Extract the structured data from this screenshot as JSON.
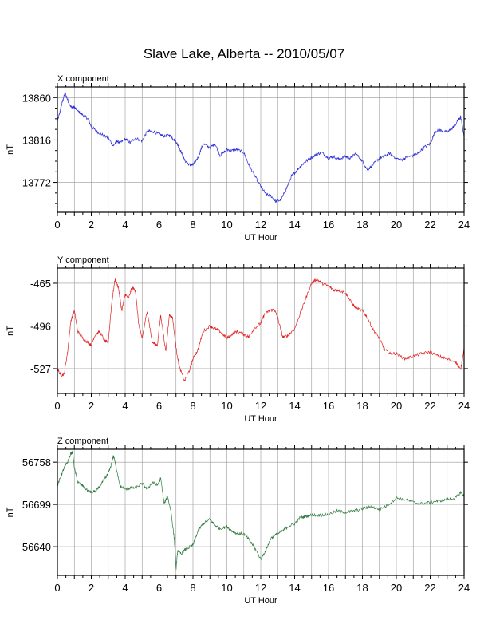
{
  "title": "Slave Lake, Alberta -- 2010/05/07",
  "colors": {
    "x": "#2b2bd6",
    "y": "#e02020",
    "z": "#2e7a3e",
    "grid": "#888888"
  },
  "chart_data": [
    {
      "type": "line",
      "component_label": "X component",
      "xlabel": "UT Hour",
      "ylabel": "nT",
      "xlim": [
        0,
        24
      ],
      "ylim": [
        13741,
        13871
      ],
      "xticks": [
        "0",
        "2",
        "4",
        "6",
        "8",
        "10",
        "12",
        "14",
        "16",
        "18",
        "20",
        "22",
        "24"
      ],
      "yticks": [
        13860,
        13816,
        13772
      ],
      "grid": true,
      "color": "#2b2bd6",
      "series": [
        {
          "x": [
            0,
            0.15,
            0.3,
            0.45,
            0.6,
            0.8,
            1.0,
            1.2,
            1.5,
            1.8,
            2.0,
            2.3,
            2.6,
            3.0,
            3.3,
            3.5,
            3.7,
            4.0,
            4.3,
            4.6,
            5.0,
            5.3,
            5.6,
            6.0,
            6.3,
            6.6,
            6.8,
            7.0,
            7.2,
            7.5,
            7.8,
            8.0,
            8.3,
            8.6,
            9.0,
            9.3,
            9.6,
            10.0,
            10.3,
            10.6,
            11.0,
            11.3,
            11.6,
            12.0,
            12.3,
            12.6,
            12.9,
            13.2,
            13.5,
            13.8,
            14.0,
            14.3,
            14.6,
            15.0,
            15.3,
            15.6,
            16.0,
            16.3,
            16.6,
            17.0,
            17.3,
            17.6,
            18.0,
            18.3,
            18.6,
            19.0,
            19.3,
            19.6,
            20.0,
            20.3,
            20.6,
            21.0,
            21.3,
            21.6,
            22.0,
            22.3,
            22.6,
            23.0,
            23.3,
            23.6,
            23.8,
            24.0
          ],
          "y": [
            13835,
            13845,
            13856,
            13865,
            13858,
            13850,
            13850,
            13846,
            13842,
            13838,
            13830,
            13825,
            13822,
            13818,
            13810,
            13815,
            13813,
            13817,
            13813,
            13818,
            13815,
            13825,
            13825,
            13822,
            13820,
            13821,
            13818,
            13814,
            13808,
            13795,
            13790,
            13790,
            13798,
            13812,
            13808,
            13812,
            13800,
            13806,
            13805,
            13806,
            13803,
            13790,
            13780,
            13768,
            13760,
            13758,
            13752,
            13754,
            13765,
            13778,
            13782,
            13788,
            13793,
            13798,
            13801,
            13803,
            13797,
            13799,
            13796,
            13799,
            13797,
            13802,
            13794,
            13785,
            13790,
            13797,
            13799,
            13802,
            13797,
            13795,
            13798,
            13800,
            13802,
            13808,
            13812,
            13825,
            13826,
            13824,
            13828,
            13835,
            13840,
            13820
          ]
        }
      ]
    },
    {
      "type": "line",
      "component_label": "Y component",
      "xlabel": "UT Hour",
      "ylabel": "nT",
      "xlim": [
        0,
        24
      ],
      "ylim": [
        -545,
        -454
      ],
      "xticks": [
        "0",
        "2",
        "4",
        "6",
        "8",
        "10",
        "12",
        "14",
        "16",
        "18",
        "20",
        "22",
        "24"
      ],
      "yticks": [
        -465,
        -496,
        -527
      ],
      "grid": true,
      "color": "#e02020",
      "series": [
        {
          "x": [
            0,
            0.2,
            0.4,
            0.6,
            0.8,
            1.0,
            1.2,
            1.5,
            1.8,
            2.0,
            2.2,
            2.5,
            2.8,
            3.0,
            3.2,
            3.4,
            3.6,
            3.8,
            4.0,
            4.2,
            4.4,
            4.6,
            4.8,
            5.0,
            5.3,
            5.6,
            5.9,
            6.1,
            6.4,
            6.6,
            6.8,
            7.0,
            7.2,
            7.5,
            7.8,
            8.0,
            8.3,
            8.6,
            9.0,
            9.3,
            9.6,
            10.0,
            10.3,
            10.6,
            11.0,
            11.3,
            11.6,
            12.0,
            12.2,
            12.5,
            12.8,
            13.0,
            13.3,
            13.6,
            14.0,
            14.3,
            14.6,
            15.0,
            15.3,
            15.6,
            16.0,
            16.3,
            16.6,
            17.0,
            17.3,
            17.6,
            18.0,
            18.3,
            18.6,
            19.0,
            19.3,
            19.6,
            20.0,
            20.5,
            21.0,
            21.5,
            22.0,
            22.5,
            23.0,
            23.5,
            23.8,
            24.0
          ],
          "y": [
            -527,
            -532,
            -531,
            -515,
            -492,
            -485,
            -500,
            -505,
            -508,
            -510,
            -503,
            -500,
            -507,
            -508,
            -480,
            -462,
            -468,
            -485,
            -473,
            -476,
            -468,
            -470,
            -495,
            -505,
            -485,
            -508,
            -510,
            -488,
            -515,
            -488,
            -490,
            -512,
            -526,
            -536,
            -528,
            -520,
            -513,
            -500,
            -496,
            -498,
            -500,
            -505,
            -502,
            -500,
            -502,
            -504,
            -498,
            -494,
            -488,
            -485,
            -484,
            -490,
            -504,
            -503,
            -498,
            -488,
            -478,
            -465,
            -462,
            -465,
            -467,
            -470,
            -470,
            -472,
            -478,
            -483,
            -485,
            -490,
            -498,
            -505,
            -513,
            -516,
            -516,
            -520,
            -518,
            -516,
            -515,
            -518,
            -520,
            -522,
            -528,
            -512
          ]
        }
      ]
    },
    {
      "type": "line",
      "component_label": "Z component",
      "xlabel": "UT Hour",
      "ylabel": "nT",
      "xlim": [
        0,
        24
      ],
      "ylim": [
        56600,
        56776
      ],
      "xticks": [
        "0",
        "2",
        "4",
        "6",
        "8",
        "10",
        "12",
        "14",
        "16",
        "18",
        "20",
        "22",
        "24"
      ],
      "yticks": [
        56758,
        56699,
        56640
      ],
      "grid": true,
      "color": "#2e7a3e",
      "series": [
        {
          "x": [
            0,
            0.2,
            0.4,
            0.6,
            0.8,
            0.9,
            1.0,
            1.2,
            1.5,
            1.8,
            2.0,
            2.3,
            2.6,
            2.9,
            3.1,
            3.3,
            3.4,
            3.5,
            3.7,
            4.0,
            4.3,
            4.6,
            5.0,
            5.3,
            5.6,
            5.9,
            6.1,
            6.3,
            6.5,
            6.7,
            6.9,
            7.0,
            7.1,
            7.3,
            7.6,
            8.0,
            8.3,
            8.6,
            9.0,
            9.3,
            9.6,
            10.0,
            10.3,
            10.6,
            11.0,
            11.3,
            11.6,
            12.0,
            12.3,
            12.6,
            13.0,
            13.3,
            13.6,
            14.0,
            14.3,
            14.6,
            15.0,
            15.5,
            16.0,
            16.5,
            17.0,
            17.5,
            18.0,
            18.5,
            19.0,
            19.5,
            20.0,
            20.5,
            21.0,
            21.5,
            22.0,
            22.5,
            23.0,
            23.5,
            23.8,
            24.0
          ],
          "y": [
            56725,
            56738,
            56750,
            56758,
            56770,
            56772,
            56750,
            56730,
            56725,
            56718,
            56716,
            56718,
            56728,
            56738,
            56748,
            56766,
            56760,
            56745,
            56725,
            56720,
            56722,
            56722,
            56728,
            56720,
            56730,
            56726,
            56735,
            56700,
            56710,
            56690,
            56650,
            56608,
            56635,
            56630,
            56637,
            56642,
            56662,
            56672,
            56678,
            56670,
            56665,
            56668,
            56662,
            56658,
            56658,
            56650,
            56640,
            56623,
            56635,
            56652,
            56658,
            56662,
            56668,
            56672,
            56680,
            56682,
            56684,
            56684,
            56685,
            56690,
            56688,
            56690,
            56693,
            56696,
            56692,
            56698,
            56708,
            56706,
            56702,
            56700,
            56702,
            56704,
            56706,
            56708,
            56716,
            56710
          ]
        }
      ]
    }
  ]
}
